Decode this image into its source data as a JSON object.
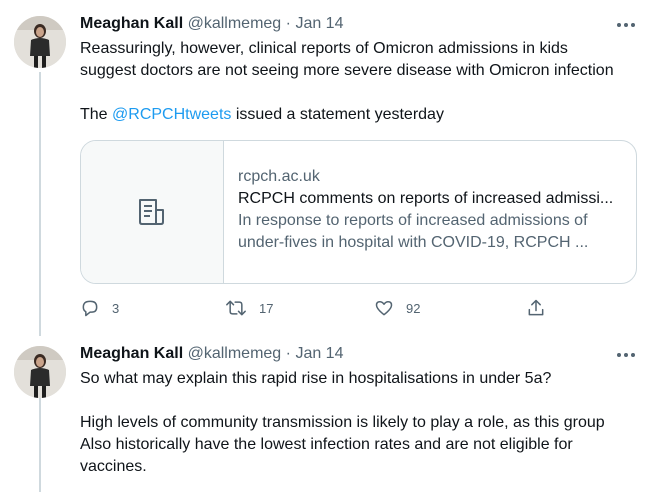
{
  "tweets": [
    {
      "author_name": "Meaghan Kall",
      "handle": "@kallmemeg",
      "separator": "·",
      "date": "Jan 14",
      "lines": [
        "Reassuringly, however, clinical reports of Omicron admissions in kids",
        "suggest doctors are not seeing more severe disease with Omicron infection"
      ],
      "line3_prefix": "The ",
      "mention": "@RCPCHtweets",
      "line3_suffix": " issued a statement yesterday",
      "card": {
        "domain": "rcpch.ac.uk",
        "title": "RCPCH comments on reports of increased admissi...",
        "desc_line1": "In response to reports of increased admissions of",
        "desc_line2": "under-fives in hospital with COVID-19, RCPCH ..."
      },
      "actions": {
        "reply_count": "3",
        "retweet_count": "17",
        "like_count": "92"
      }
    },
    {
      "author_name": "Meaghan Kall",
      "handle": "@kallmemeg",
      "separator": "·",
      "date": "Jan 14",
      "line1": "So what may explain this rapid rise in hospitalisations in under 5a?",
      "para2": [
        "High levels of community transmission is likely to play a role, as this group",
        "Also historically have the lowest infection rates and are not eligible for",
        "vaccines."
      ]
    }
  ],
  "icons": [
    "more-icon",
    "article-icon",
    "reply-icon",
    "retweet-icon",
    "like-icon",
    "share-icon"
  ],
  "colors": {
    "link": "#1d9bf0",
    "secondary_text": "#536471",
    "border": "#cfd9de"
  }
}
